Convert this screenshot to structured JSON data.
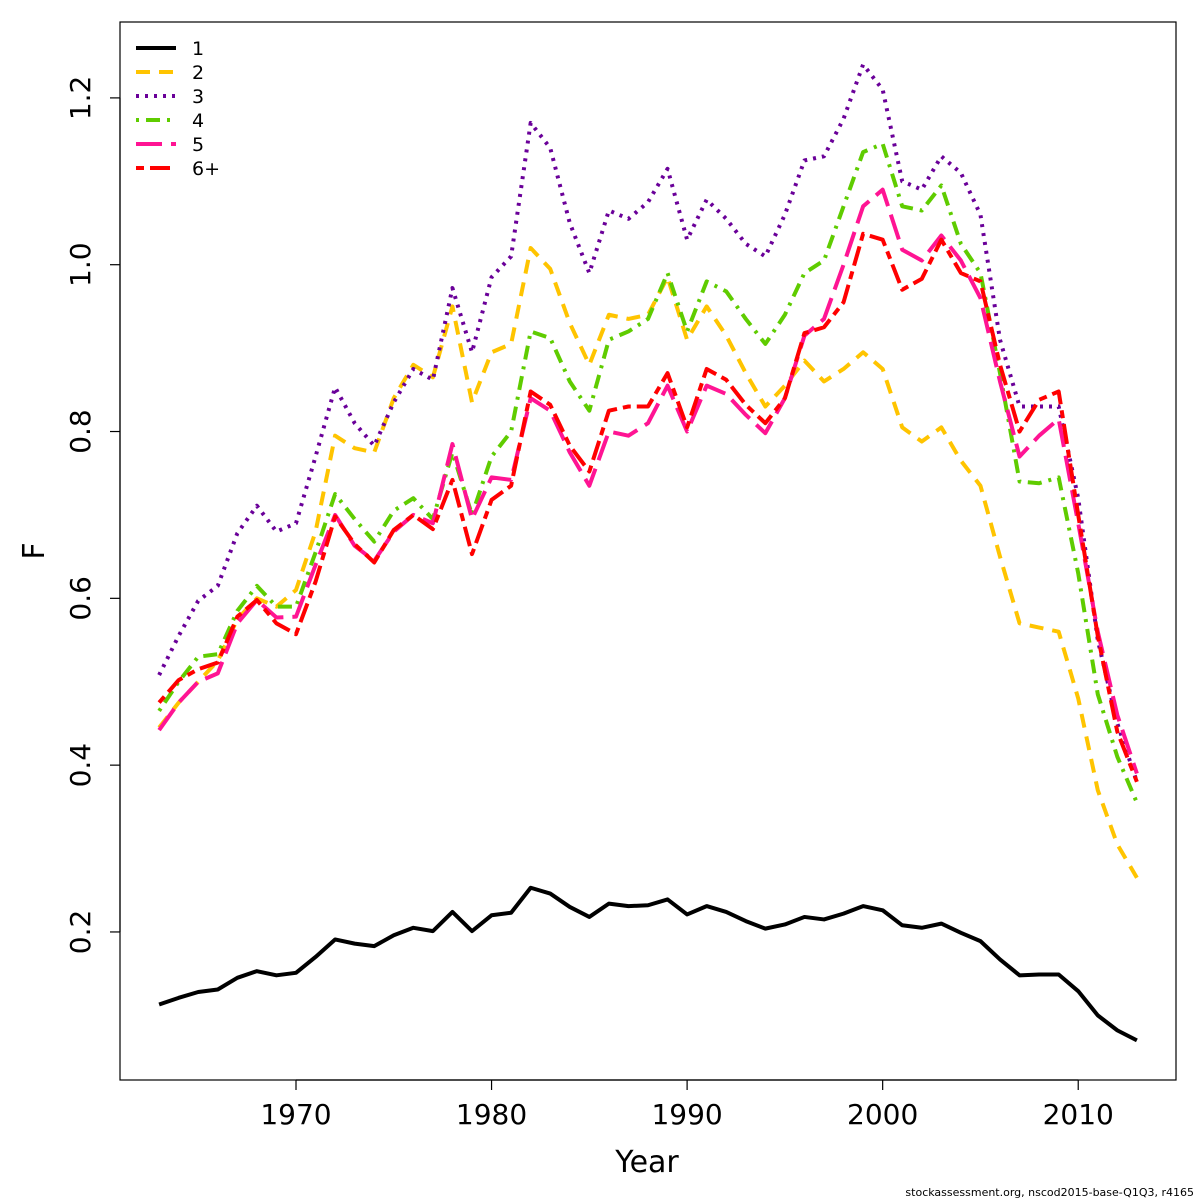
{
  "chart_data": {
    "type": "line",
    "x_label": "Year",
    "y_label": "F",
    "footnote": "stockassessment.org, nscod2015-base-Q1Q3, r4165",
    "legend": "top-left",
    "x": [
      1963,
      1964,
      1965,
      1966,
      1967,
      1968,
      1969,
      1970,
      1971,
      1972,
      1973,
      1974,
      1975,
      1976,
      1977,
      1978,
      1979,
      1980,
      1981,
      1982,
      1983,
      1984,
      1985,
      1986,
      1987,
      1988,
      1989,
      1990,
      1991,
      1992,
      1993,
      1994,
      1995,
      1996,
      1997,
      1998,
      1999,
      2000,
      2001,
      2002,
      2003,
      2004,
      2005,
      2006,
      2007,
      2008,
      2009,
      2010,
      2011,
      2012,
      2013
    ],
    "xlim": [
      1961,
      2015
    ],
    "xticks": [
      1970,
      1980,
      1990,
      2000,
      2010
    ],
    "ylim": [
      0.0225,
      1.291
    ],
    "yticks": [
      0.2,
      0.4,
      0.6,
      0.8,
      {
        "value": 1,
        "label": "1.0"
      },
      1.2
    ],
    "series": [
      {
        "name": "1",
        "color": "#000000",
        "dash": "solid",
        "values": [
          0.113,
          0.121,
          0.128,
          0.131,
          0.145,
          0.153,
          0.148,
          0.151,
          0.17,
          0.191,
          0.186,
          0.183,
          0.196,
          0.205,
          0.201,
          0.224,
          0.201,
          0.22,
          0.223,
          0.253,
          0.246,
          0.23,
          0.218,
          0.234,
          0.231,
          0.232,
          0.239,
          0.221,
          0.231,
          0.224,
          0.213,
          0.204,
          0.209,
          0.218,
          0.215,
          0.222,
          0.231,
          0.226,
          0.208,
          0.205,
          0.21,
          0.199,
          0.189,
          0.167,
          0.148,
          0.149,
          0.149,
          0.129,
          0.1,
          0.082,
          0.07
        ]
      },
      {
        "name": "2",
        "color": "#ffc400",
        "dash": "dashed",
        "values": [
          0.445,
          0.475,
          0.5,
          0.525,
          0.575,
          0.6,
          0.59,
          0.61,
          0.68,
          0.795,
          0.78,
          0.775,
          0.84,
          0.88,
          0.865,
          0.95,
          0.835,
          0.895,
          0.905,
          1.02,
          0.995,
          0.93,
          0.88,
          0.94,
          0.935,
          0.94,
          0.985,
          0.91,
          0.95,
          0.915,
          0.87,
          0.83,
          0.855,
          0.885,
          0.86,
          0.875,
          0.895,
          0.875,
          0.805,
          0.788,
          0.805,
          0.765,
          0.735,
          0.65,
          0.57,
          0.565,
          0.56,
          0.48,
          0.37,
          0.305,
          0.265
        ]
      },
      {
        "name": "3",
        "color": "#6a0099",
        "dash": "dotted",
        "values": [
          0.508,
          0.555,
          0.597,
          0.615,
          0.678,
          0.711,
          0.68,
          0.69,
          0.77,
          0.853,
          0.81,
          0.783,
          0.835,
          0.875,
          0.862,
          0.972,
          0.895,
          0.985,
          1.01,
          1.17,
          1.14,
          1.05,
          0.99,
          1.065,
          1.055,
          1.075,
          1.115,
          1.03,
          1.078,
          1.055,
          1.025,
          1.01,
          1.06,
          1.125,
          1.13,
          1.175,
          1.24,
          1.21,
          1.1,
          1.09,
          1.13,
          1.11,
          1.06,
          0.91,
          0.83,
          0.83,
          0.83,
          0.72,
          0.55,
          0.45,
          0.38
        ]
      },
      {
        "name": "4",
        "color": "#5fcc00",
        "dash": "dotdash",
        "values": [
          0.465,
          0.5,
          0.53,
          0.533,
          0.585,
          0.615,
          0.59,
          0.59,
          0.655,
          0.725,
          0.695,
          0.668,
          0.705,
          0.72,
          0.695,
          0.775,
          0.7,
          0.77,
          0.8,
          0.92,
          0.912,
          0.86,
          0.825,
          0.91,
          0.92,
          0.935,
          0.99,
          0.92,
          0.98,
          0.968,
          0.935,
          0.905,
          0.94,
          0.99,
          1.005,
          1.07,
          1.135,
          1.145,
          1.07,
          1.065,
          1.095,
          1.025,
          0.99,
          0.87,
          0.74,
          0.738,
          0.745,
          0.63,
          0.485,
          0.41,
          0.355
        ]
      },
      {
        "name": "5",
        "color": "#ff1493",
        "dash": "longdash",
        "values": [
          0.442,
          0.475,
          0.5,
          0.51,
          0.57,
          0.598,
          0.577,
          0.578,
          0.64,
          0.7,
          0.663,
          0.645,
          0.68,
          0.7,
          0.69,
          0.785,
          0.695,
          0.745,
          0.742,
          0.84,
          0.825,
          0.775,
          0.735,
          0.8,
          0.795,
          0.81,
          0.855,
          0.8,
          0.855,
          0.845,
          0.82,
          0.798,
          0.84,
          0.915,
          0.935,
          1.0,
          1.07,
          1.09,
          1.018,
          1.005,
          1.035,
          1.005,
          0.96,
          0.86,
          0.77,
          0.795,
          0.815,
          0.69,
          0.56,
          0.46,
          0.39
        ]
      },
      {
        "name": "6+",
        "color": "#ff0000",
        "dash": "twodash",
        "values": [
          0.475,
          0.502,
          0.515,
          0.523,
          0.578,
          0.598,
          0.57,
          0.557,
          0.62,
          0.698,
          0.665,
          0.643,
          0.682,
          0.7,
          0.683,
          0.742,
          0.653,
          0.718,
          0.735,
          0.848,
          0.832,
          0.783,
          0.752,
          0.825,
          0.83,
          0.83,
          0.87,
          0.805,
          0.875,
          0.862,
          0.832,
          0.81,
          0.84,
          0.918,
          0.925,
          0.955,
          1.037,
          1.03,
          0.97,
          0.983,
          1.03,
          0.99,
          0.98,
          0.88,
          0.8,
          0.838,
          0.848,
          0.7,
          0.555,
          0.44,
          0.38
        ]
      }
    ]
  }
}
